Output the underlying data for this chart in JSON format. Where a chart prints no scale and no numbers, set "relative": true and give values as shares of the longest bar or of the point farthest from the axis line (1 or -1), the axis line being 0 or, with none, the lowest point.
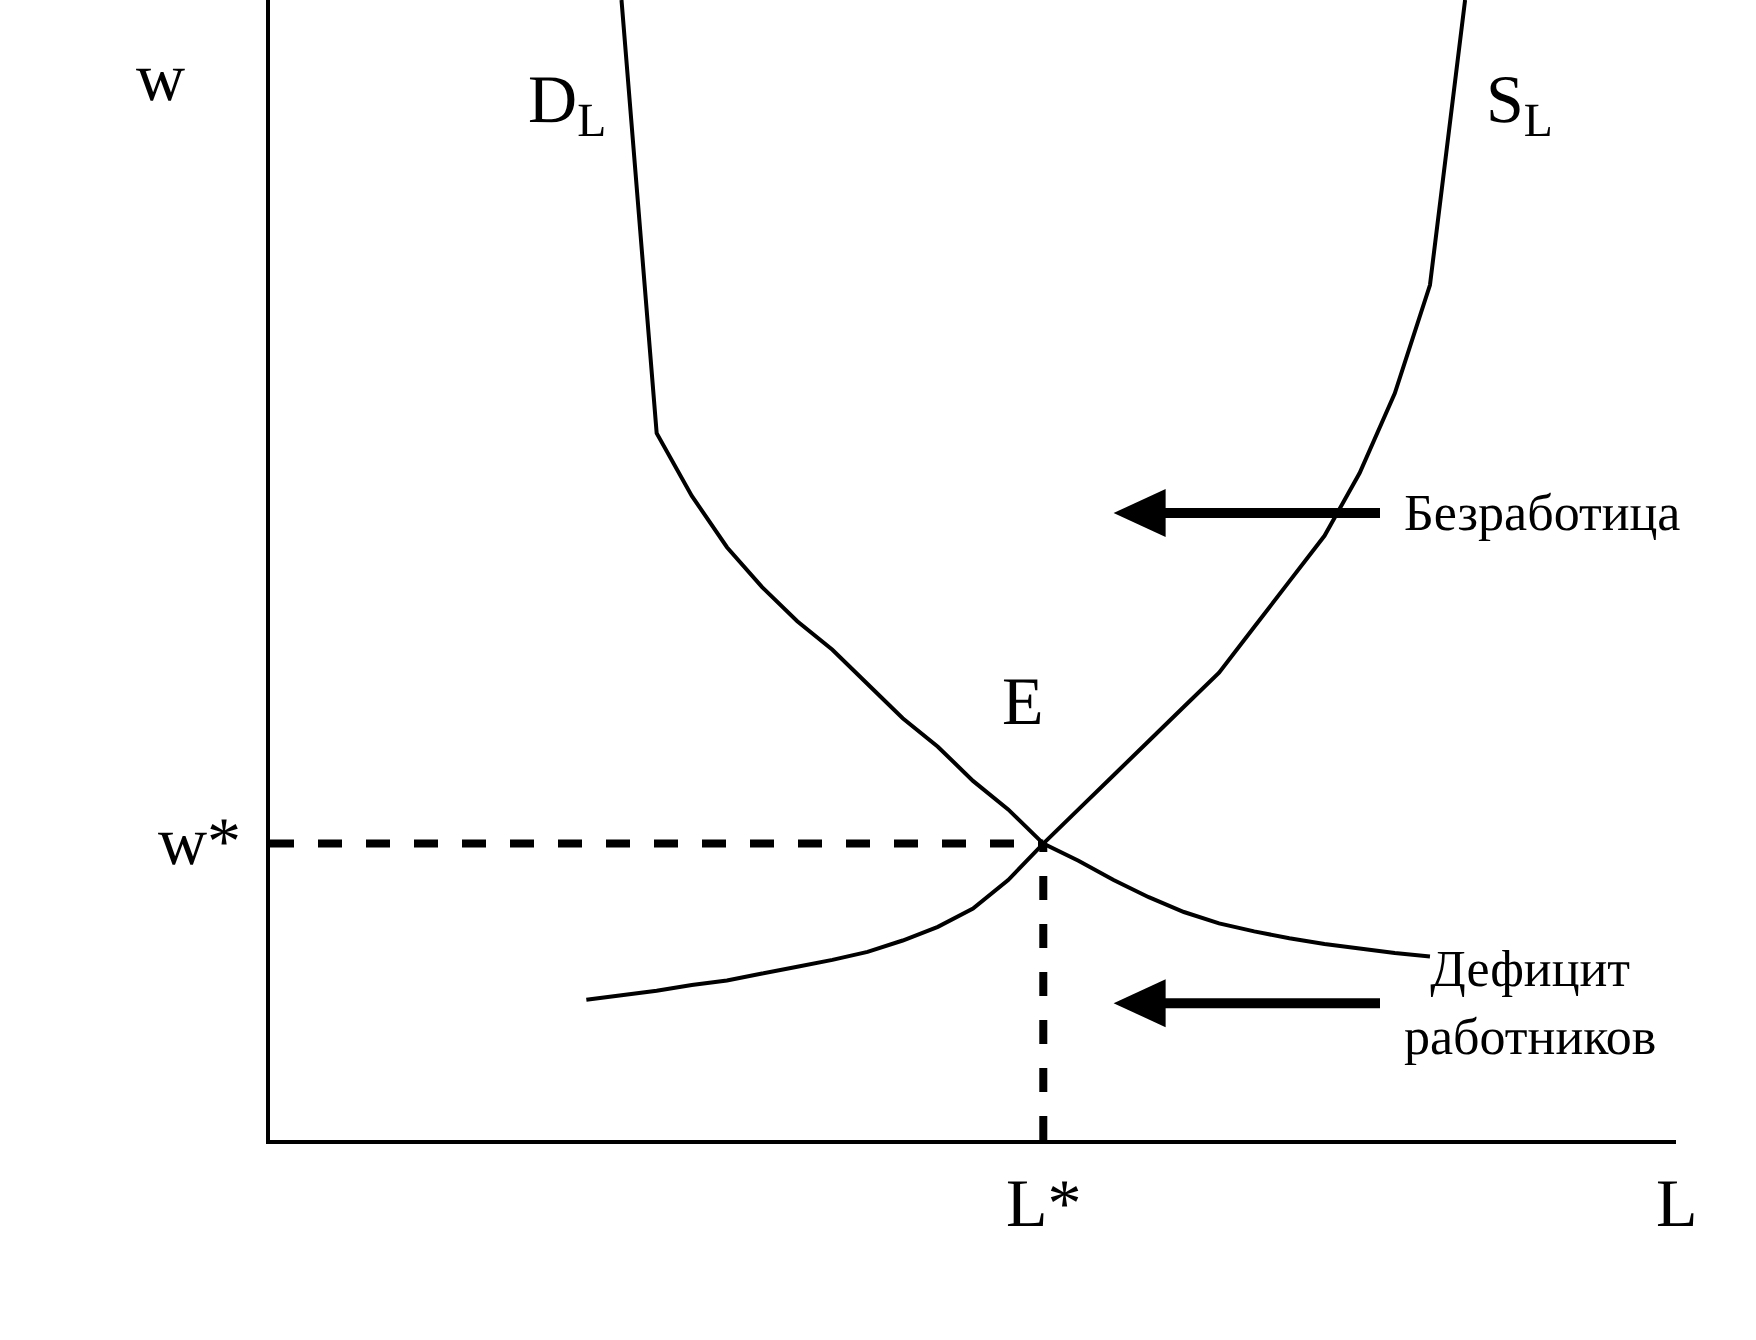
{
  "chart_data": {
    "type": "line",
    "relative": true,
    "xlabel": "L",
    "ylabel": "w",
    "grid": false,
    "marker": "none",
    "categories": [
      null,
      null,
      null,
      null,
      null,
      null,
      null,
      null,
      null,
      null,
      null,
      null,
      null,
      null,
      null,
      null,
      null,
      null,
      null,
      null,
      null,
      null,
      null,
      null,
      null,
      null,
      null,
      null,
      null,
      null,
      null,
      null,
      null,
      null,
      null,
      null,
      null,
      null,
      null,
      null,
      null
    ],
    "series": [
      {
        "name": "D$_{L}$",
        "color": "#000000",
        "values": [
          null,
          null,
          null,
          null,
          null,
          null,
          null,
          null,
          null,
          null,
          1,
          0.62,
          0.565,
          0.52,
          0.485,
          0.455,
          0.43,
          0.4,
          0.37,
          0.345,
          0.315,
          0.29,
          0.26,
          0.245,
          0.228,
          0.213,
          0.2,
          0.19,
          0.183,
          0.177,
          0.172,
          0.168,
          0.164,
          0.161,
          null,
          null,
          null,
          null,
          null,
          null,
          null
        ]
      },
      {
        "name": "S$_{L}$",
        "color": "#000000",
        "values": [
          null,
          null,
          null,
          null,
          null,
          null,
          null,
          null,
          null,
          0.123,
          0.127,
          0.131,
          0.136,
          0.14,
          0.146,
          0.152,
          0.158,
          0.165,
          0.175,
          0.187,
          0.203,
          0.228,
          0.26,
          0.29,
          0.32,
          0.35,
          0.38,
          0.41,
          0.45,
          0.49,
          0.53,
          0.585,
          0.655,
          0.75,
          1,
          null,
          null,
          null,
          null,
          null,
          null
        ]
      }
    ],
    "ref_lines": [
      {
        "axis": "y",
        "value": 0.26,
        "label": "w*",
        "color": "#000000",
        "line_style": "dashed"
      }
    ],
    "annotations": [
      "E",
      "L*",
      "Безработица",
      "Дефицит работников"
    ]
  }
}
